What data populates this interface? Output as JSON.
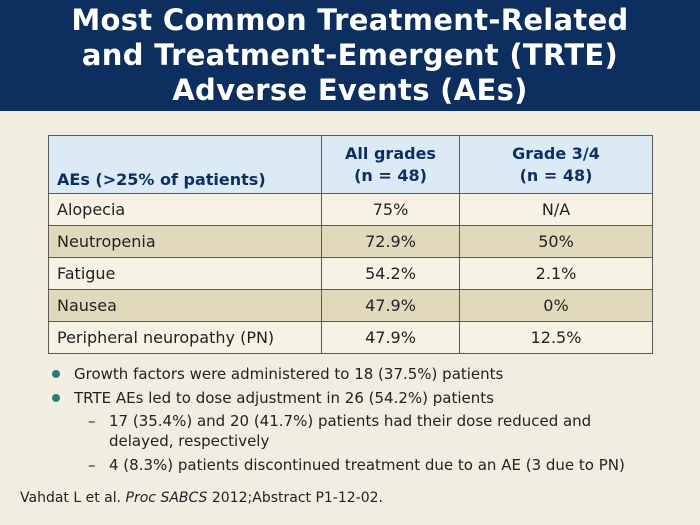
{
  "title": {
    "line1": "Most Common Treatment-Related",
    "line2": "and Treatment-Emergent (TRTE)",
    "line3": "Adverse Events (AEs)"
  },
  "table": {
    "headers": {
      "col1": "AEs (>25% of patients)",
      "col2_line1": "All grades",
      "col2_line2": "(n = 48)",
      "col3_line1": "Grade 3/4",
      "col3_line2": "(n = 48)"
    },
    "rows": [
      {
        "ae": "Alopecia",
        "all": "75%",
        "g34": "N/A"
      },
      {
        "ae": "Neutropenia",
        "all": "72.9%",
        "g34": "50%"
      },
      {
        "ae": "Fatigue",
        "all": "54.2%",
        "g34": "2.1%"
      },
      {
        "ae": "Nausea",
        "all": "47.9%",
        "g34": "0%"
      },
      {
        "ae": "Peripheral neuropathy (PN)",
        "all": "47.9%",
        "g34": "12.5%"
      }
    ]
  },
  "bullets": {
    "b1": "Growth factors were administered to 18 (37.5%) patients",
    "b2": "TRTE AEs led to dose adjustment in 26 (54.2%) patients",
    "sub1_line1": "17 (35.4%) and 20 (41.7%) patients had their dose reduced and",
    "sub1_line2": "delayed, respectively",
    "sub2": "4 (8.3%) patients discontinued treatment due to an AE (3 due to PN)",
    "dash": "–"
  },
  "citation": {
    "authors": "Vahdat L et al.",
    "journal": "Proc SABCS",
    "rest": "2012;Abstract P1-12-02."
  },
  "colors": {
    "title_bg": "#0d2f5f",
    "header_bg": "#dbeaf4",
    "row_light": "#f6f2e4",
    "row_dark": "#e2d9bd",
    "bullet": "#2a7a7a"
  }
}
